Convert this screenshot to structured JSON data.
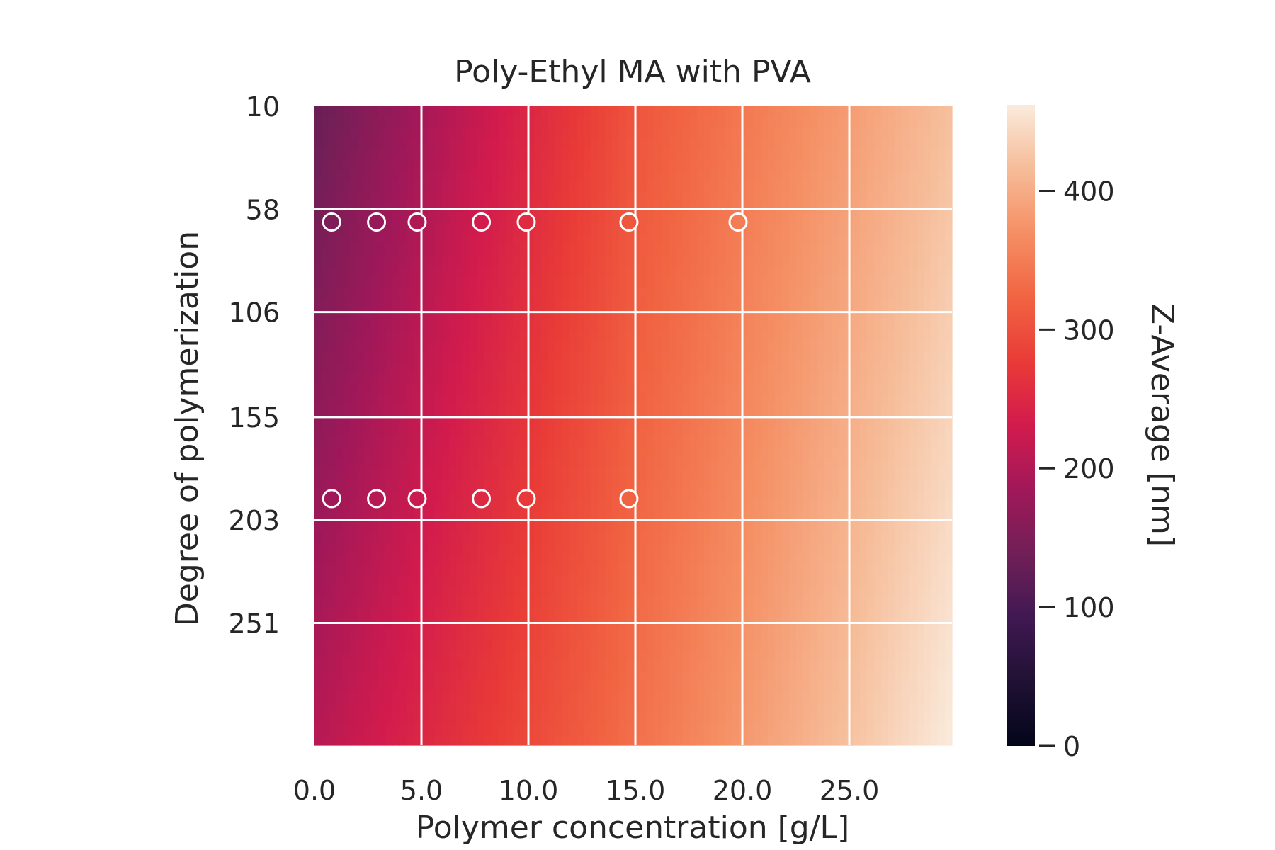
{
  "chart_data": {
    "type": "heatmap",
    "title": "Poly-Ethyl MA with PVA",
    "xlabel": "Polymer concentration [g/L]",
    "ylabel": "Degree of polymerization",
    "xlim": [
      0,
      29.8
    ],
    "ylim_top_to_bottom": [
      10,
      308
    ],
    "x_ticks": [
      0,
      5,
      10,
      15,
      20,
      25
    ],
    "x_tick_labels": [
      "0.0",
      "5.0",
      "10.0",
      "15.0",
      "20.0",
      "25.0"
    ],
    "y_ticks": [
      10,
      58,
      106,
      155,
      203,
      251
    ],
    "y_tick_labels": [
      "10",
      "58",
      "106",
      "155",
      "203",
      "251"
    ],
    "grid": true,
    "colormap": "rocket",
    "colorbar": {
      "label": "Z-Average [nm]",
      "range": [
        0,
        462
      ],
      "ticks": [
        0,
        100,
        200,
        300,
        400
      ],
      "tick_labels": [
        "0",
        "100",
        "200",
        "300",
        "400"
      ]
    },
    "surface_z_corners": {
      "x0_ytop": 130,
      "x0_ybottom": 205,
      "xmax_ytop": 420,
      "xmax_ybottom": 462,
      "mid_x_ytop": 305,
      "mid_x_ybottom": 335
    },
    "series": [
      {
        "marker": "circle",
        "y": 64,
        "x": [
          0.8,
          2.9,
          4.8,
          7.8,
          9.9,
          14.7,
          19.8
        ]
      },
      {
        "marker": "circle",
        "y": 193,
        "x": [
          0.8,
          2.9,
          4.8,
          7.8,
          9.9,
          14.7
        ]
      }
    ]
  }
}
